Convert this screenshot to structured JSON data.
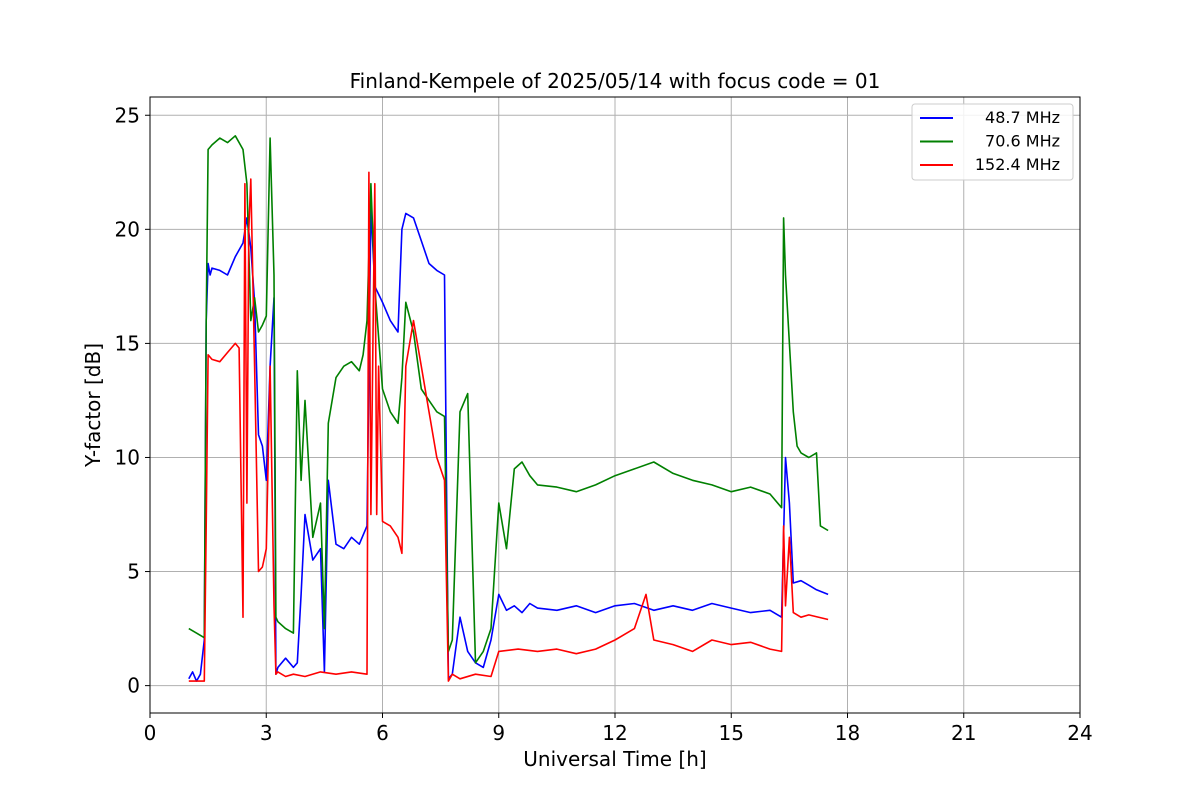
{
  "chart_data": {
    "type": "line",
    "title": "Finland-Kempele of 2025/05/14 with focus code = 01",
    "xlabel": "Universal Time [h]",
    "ylabel": "Y-factor [dB]",
    "xlim": [
      0,
      24
    ],
    "ylim": [
      -1.2,
      25.8
    ],
    "xticks": [
      0,
      3,
      6,
      9,
      12,
      15,
      18,
      21,
      24
    ],
    "yticks": [
      0,
      5,
      10,
      15,
      20,
      25
    ],
    "grid": true,
    "legend_position": "top-right",
    "series": [
      {
        "name": "48.7 MHz",
        "color": "#0000ff",
        "x": [
          1.0,
          1.1,
          1.2,
          1.3,
          1.4,
          1.45,
          1.5,
          1.55,
          1.6,
          1.8,
          2.0,
          2.2,
          2.4,
          2.5,
          2.6,
          2.7,
          2.8,
          2.9,
          3.0,
          3.1,
          3.2,
          3.25,
          3.3,
          3.5,
          3.7,
          3.8,
          3.9,
          4.0,
          4.2,
          4.4,
          4.5,
          4.6,
          4.8,
          5.0,
          5.2,
          5.4,
          5.6,
          5.7,
          5.8,
          6.0,
          6.2,
          6.4,
          6.5,
          6.6,
          6.8,
          7.0,
          7.2,
          7.4,
          7.6,
          7.7,
          7.8,
          8.0,
          8.2,
          8.4,
          8.6,
          8.8,
          9.0,
          9.2,
          9.4,
          9.6,
          9.8,
          10.0,
          10.5,
          11.0,
          11.5,
          12.0,
          12.5,
          13.0,
          13.5,
          14.0,
          14.5,
          15.0,
          15.5,
          16.0,
          16.3,
          16.4,
          16.5,
          16.6,
          16.8,
          17.0,
          17.2,
          17.5
        ],
        "y": [
          0.3,
          0.6,
          0.2,
          0.5,
          2.0,
          16.0,
          18.5,
          18.0,
          18.3,
          18.2,
          18.0,
          18.8,
          19.4,
          20.5,
          19.2,
          16.8,
          11.0,
          10.5,
          9.0,
          14.0,
          17.0,
          0.5,
          0.8,
          1.2,
          0.8,
          1.0,
          4.0,
          7.5,
          5.5,
          6.0,
          0.6,
          9.0,
          6.2,
          6.0,
          6.5,
          6.2,
          7.0,
          21.0,
          17.5,
          16.8,
          16.0,
          15.5,
          20.0,
          20.7,
          20.5,
          19.5,
          18.5,
          18.2,
          18.0,
          0.3,
          0.5,
          3.0,
          1.5,
          1.0,
          0.8,
          2.0,
          4.0,
          3.3,
          3.5,
          3.2,
          3.6,
          3.4,
          3.3,
          3.5,
          3.2,
          3.5,
          3.6,
          3.3,
          3.5,
          3.3,
          3.6,
          3.4,
          3.2,
          3.3,
          3.0,
          10.0,
          8.0,
          4.5,
          4.6,
          4.4,
          4.2,
          4.0
        ]
      },
      {
        "name": "70.6 MHz",
        "color": "#008000",
        "x": [
          1.0,
          1.2,
          1.4,
          1.45,
          1.5,
          1.6,
          1.8,
          2.0,
          2.2,
          2.4,
          2.5,
          2.6,
          2.7,
          2.8,
          2.9,
          3.0,
          3.1,
          3.2,
          3.25,
          3.3,
          3.5,
          3.7,
          3.8,
          3.9,
          4.0,
          4.2,
          4.4,
          4.5,
          4.6,
          4.8,
          5.0,
          5.2,
          5.4,
          5.5,
          5.6,
          5.7,
          5.8,
          6.0,
          6.2,
          6.4,
          6.5,
          6.6,
          6.8,
          7.0,
          7.2,
          7.4,
          7.6,
          7.7,
          7.8,
          8.0,
          8.2,
          8.4,
          8.6,
          8.8,
          9.0,
          9.2,
          9.4,
          9.6,
          9.8,
          10.0,
          10.5,
          11.0,
          11.5,
          12.0,
          12.5,
          13.0,
          13.5,
          14.0,
          14.5,
          15.0,
          15.5,
          16.0,
          16.3,
          16.35,
          16.4,
          16.5,
          16.6,
          16.7,
          16.8,
          17.0,
          17.2,
          17.3,
          17.5
        ],
        "y": [
          2.5,
          2.3,
          2.1,
          16.0,
          23.5,
          23.7,
          24.0,
          23.8,
          24.1,
          23.5,
          22.0,
          16.0,
          17.0,
          15.5,
          15.8,
          16.2,
          24.0,
          18.0,
          3.0,
          2.8,
          2.5,
          2.3,
          13.8,
          9.0,
          12.5,
          6.5,
          8.0,
          2.5,
          11.5,
          13.5,
          14.0,
          14.2,
          13.8,
          14.5,
          16.0,
          22.0,
          17.5,
          13.0,
          12.0,
          11.5,
          13.5,
          16.8,
          15.5,
          13.0,
          12.5,
          12.0,
          11.8,
          1.5,
          2.0,
          12.0,
          12.8,
          1.0,
          1.5,
          2.5,
          8.0,
          6.0,
          9.5,
          9.8,
          9.2,
          8.8,
          8.7,
          8.5,
          8.8,
          9.2,
          9.5,
          9.8,
          9.3,
          9.0,
          8.8,
          8.5,
          8.7,
          8.4,
          7.8,
          20.5,
          18.0,
          15.0,
          12.0,
          10.5,
          10.2,
          10.0,
          10.2,
          7.0,
          6.8
        ]
      },
      {
        "name": "152.4 MHz",
        "color": "#ff0000",
        "x": [
          1.0,
          1.2,
          1.4,
          1.45,
          1.5,
          1.6,
          1.8,
          2.0,
          2.2,
          2.3,
          2.4,
          2.45,
          2.5,
          2.55,
          2.6,
          2.7,
          2.8,
          2.9,
          3.0,
          3.1,
          3.2,
          3.25,
          3.3,
          3.5,
          3.7,
          4.0,
          4.4,
          4.8,
          5.2,
          5.6,
          5.65,
          5.7,
          5.8,
          5.85,
          5.9,
          6.0,
          6.2,
          6.4,
          6.5,
          6.6,
          6.8,
          7.0,
          7.2,
          7.4,
          7.6,
          7.7,
          7.8,
          8.0,
          8.4,
          8.8,
          9.0,
          9.5,
          10.0,
          10.5,
          11.0,
          11.5,
          12.0,
          12.5,
          12.8,
          13.0,
          13.5,
          14.0,
          14.5,
          15.0,
          15.5,
          16.0,
          16.3,
          16.35,
          16.4,
          16.5,
          16.6,
          16.8,
          17.0,
          17.5
        ],
        "y": [
          0.2,
          0.2,
          0.2,
          7.0,
          14.5,
          14.3,
          14.2,
          14.6,
          15.0,
          14.8,
          3.0,
          22.0,
          8.0,
          20.0,
          22.2,
          14.0,
          5.0,
          5.2,
          6.0,
          14.0,
          3.5,
          0.5,
          0.6,
          0.4,
          0.5,
          0.4,
          0.6,
          0.5,
          0.6,
          0.5,
          22.5,
          7.5,
          22.0,
          7.5,
          14.0,
          7.2,
          7.0,
          6.5,
          5.8,
          14.0,
          16.0,
          14.0,
          12.0,
          10.0,
          9.0,
          0.2,
          0.5,
          0.3,
          0.5,
          0.4,
          1.5,
          1.6,
          1.5,
          1.6,
          1.4,
          1.6,
          2.0,
          2.5,
          4.0,
          2.0,
          1.8,
          1.5,
          2.0,
          1.8,
          1.9,
          1.6,
          1.5,
          7.0,
          3.5,
          6.5,
          3.2,
          3.0,
          3.1,
          2.9
        ]
      }
    ]
  }
}
